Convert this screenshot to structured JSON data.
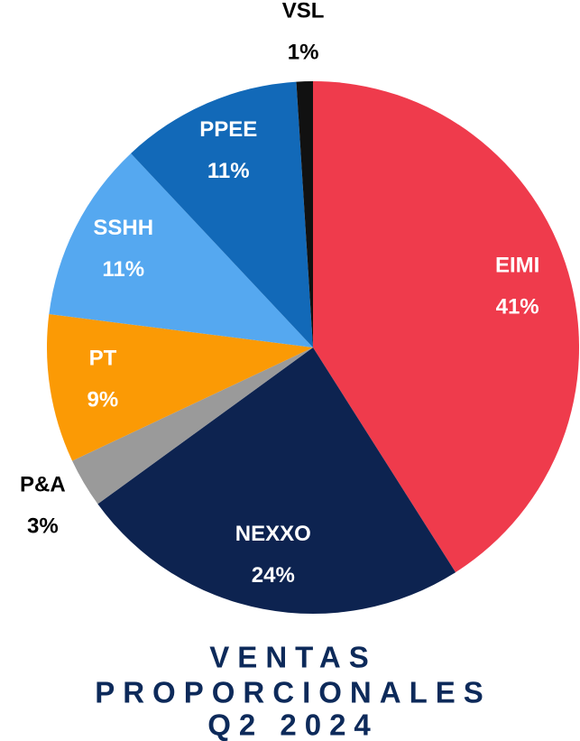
{
  "chart_data": {
    "type": "pie",
    "title": [
      "VENTAS",
      "PROPORCIONALES",
      "Q2 2024"
    ],
    "categories": [
      "EIMI",
      "NEXXO",
      "P&A",
      "PT",
      "SSHH",
      "PPEE",
      "VSL"
    ],
    "values": [
      41,
      24,
      3,
      9,
      11,
      11,
      1
    ],
    "value_labels": [
      "41%",
      "24%",
      "3%",
      "9%",
      "11%",
      "11%",
      "1%"
    ],
    "colors": [
      "#ef3b4c",
      "#0d2350",
      "#9a9a9a",
      "#fb9a05",
      "#55a8f0",
      "#1269b8",
      "#111111"
    ]
  }
}
